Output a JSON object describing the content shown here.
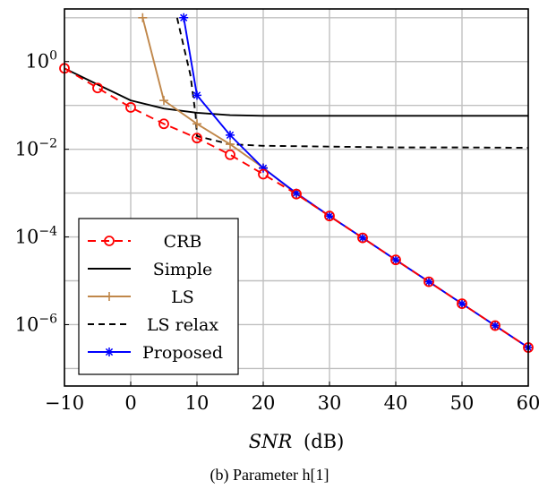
{
  "caption": "(b)  Parameter h[1]",
  "chart_data": {
    "type": "line",
    "xlabel_var": "SNR",
    "xlabel_unit": "(dB)",
    "ylabel": "",
    "xlim": [
      -10,
      60
    ],
    "ylim_exp": [
      -7.4,
      1.2
    ],
    "y_scale": "log",
    "grid": true,
    "legend_position": "bottom-left",
    "x_ticks": [
      -10,
      0,
      10,
      20,
      30,
      40,
      50,
      60
    ],
    "x_tick_labels": [
      "−10",
      "0",
      "10",
      "20",
      "30",
      "40",
      "50",
      "60"
    ],
    "y_ticks_exp": [
      0,
      -2,
      -4,
      -6
    ],
    "y_tick_base": "10",
    "y_tick_exponents": [
      "0",
      "−2",
      "−4",
      "−6"
    ],
    "series": [
      {
        "name": "CRB",
        "color": "#ff0000",
        "dash": "9,6",
        "marker": "circle",
        "x": [
          -10,
          -5,
          0,
          5,
          10,
          15,
          20,
          25,
          30,
          35,
          40,
          45,
          50,
          55,
          60
        ],
        "y": [
          0.7,
          0.25,
          0.09,
          0.038,
          0.018,
          0.0075,
          0.0027,
          0.00095,
          0.0003,
          9.52e-05,
          3e-05,
          9.5e-06,
          3e-06,
          9.5e-07,
          3e-07
        ]
      },
      {
        "name": "Simple",
        "color": "#000000",
        "dash": "",
        "marker": "none",
        "x": [
          -10,
          -5,
          0,
          5,
          10,
          15,
          20,
          30,
          40,
          50,
          60
        ],
        "y": [
          0.7,
          0.3,
          0.13,
          0.085,
          0.068,
          0.06,
          0.058,
          0.058,
          0.058,
          0.058,
          0.058
        ]
      },
      {
        "name": "LS",
        "color": "#c0874a",
        "dash": "",
        "marker": "plus",
        "x": [
          1.8,
          5,
          10,
          15,
          20,
          25,
          30,
          35,
          40,
          45,
          50,
          55,
          60
        ],
        "y": [
          10,
          0.13,
          0.038,
          0.013,
          0.0038,
          0.00095,
          0.0003,
          9.52e-05,
          3e-05,
          9.5e-06,
          3e-06,
          9.5e-07,
          3e-07
        ]
      },
      {
        "name": "LS relax",
        "color": "#000000",
        "dash": "7,5",
        "marker": "none",
        "x": [
          7,
          8,
          9,
          9.8,
          10,
          15,
          20,
          30,
          40,
          50,
          60
        ],
        "y": [
          10,
          2.2,
          0.5,
          0.06,
          0.02,
          0.013,
          0.012,
          0.0115,
          0.011,
          0.011,
          0.0108
        ]
      },
      {
        "name": "Proposed",
        "color": "#0000ff",
        "dash": "",
        "marker": "star",
        "x": [
          8,
          10,
          15,
          20,
          25,
          30,
          35,
          40,
          45,
          50,
          55,
          60
        ],
        "y": [
          10,
          0.17,
          0.021,
          0.0037,
          0.001,
          0.0003,
          9.52e-05,
          3e-05,
          9.5e-06,
          3e-06,
          9.5e-07,
          3e-07
        ]
      }
    ]
  }
}
